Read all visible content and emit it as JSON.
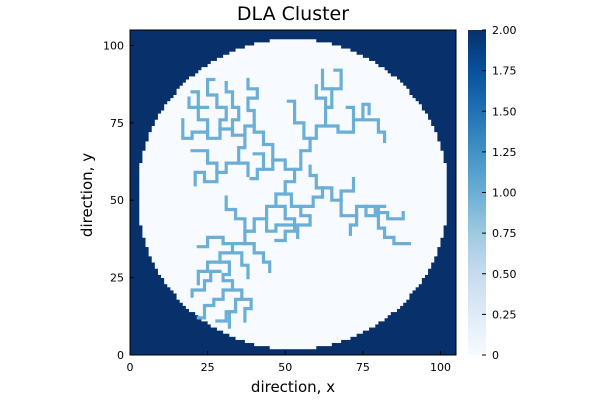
{
  "chart_data": {
    "type": "heatmap",
    "title": "DLA Cluster",
    "xlabel": "direction, x",
    "ylabel": "direction, y",
    "xlim": [
      0,
      105
    ],
    "ylim": [
      0,
      105
    ],
    "xticks": [
      0,
      25,
      50,
      75,
      100
    ],
    "yticks": [
      0,
      25,
      50,
      75,
      100
    ],
    "grid": false,
    "grid_size": [
      105,
      105
    ],
    "values": {
      "outside_circle": 2,
      "empty_disk": 0,
      "cluster": 1
    },
    "disk": {
      "center": [
        52,
        52
      ],
      "radius": 50
    },
    "colorbar": {
      "range": [
        0,
        2
      ],
      "ticks": [
        "0",
        "0.25",
        "0.50",
        "0.75",
        "1.00",
        "1.25",
        "1.50",
        "1.75",
        "2.00"
      ],
      "colormap": "Blues",
      "colors": [
        "#f7fbff",
        "#deebf7",
        "#c6dbef",
        "#9ecae1",
        "#6baed6",
        "#4292c6",
        "#2171b5",
        "#08519c",
        "#08306b"
      ]
    },
    "cluster_segments": [
      [
        [
          50,
          52
        ],
        [
          50,
          56
        ],
        [
          53,
          56
        ],
        [
          53,
          60
        ],
        [
          55,
          60
        ],
        [
          55,
          66
        ],
        [
          58,
          66
        ],
        [
          58,
          70
        ],
        [
          60,
          70
        ],
        [
          60,
          74
        ],
        [
          63,
          74
        ],
        [
          63,
          80
        ],
        [
          65,
          80
        ],
        [
          65,
          86
        ],
        [
          62,
          86
        ],
        [
          62,
          92
        ]
      ],
      [
        [
          58,
          70
        ],
        [
          56,
          70
        ],
        [
          56,
          75
        ],
        [
          53,
          75
        ],
        [
          53,
          82
        ],
        [
          51,
          82
        ]
      ],
      [
        [
          63,
          74
        ],
        [
          67,
          74
        ],
        [
          67,
          72
        ],
        [
          72,
          72
        ],
        [
          72,
          76
        ],
        [
          75,
          76
        ],
        [
          75,
          81
        ],
        [
          77,
          81
        ],
        [
          77,
          78
        ]
      ],
      [
        [
          72,
          76
        ],
        [
          72,
          80
        ],
        [
          70,
          80
        ]
      ],
      [
        [
          75,
          76
        ],
        [
          80,
          76
        ],
        [
          80,
          72
        ],
        [
          82,
          72
        ],
        [
          82,
          69
        ]
      ],
      [
        [
          65,
          86
        ],
        [
          68,
          86
        ],
        [
          68,
          92
        ],
        [
          66,
          92
        ]
      ],
      [
        [
          65,
          80
        ],
        [
          63,
          80
        ],
        [
          63,
          83
        ],
        [
          60,
          83
        ],
        [
          60,
          87
        ]
      ],
      [
        [
          53,
          60
        ],
        [
          50,
          60
        ],
        [
          50,
          63
        ],
        [
          46,
          63
        ],
        [
          46,
          60
        ],
        [
          43,
          60
        ],
        [
          43,
          65
        ],
        [
          40,
          65
        ]
      ],
      [
        [
          43,
          60
        ],
        [
          41,
          60
        ],
        [
          41,
          57
        ],
        [
          39,
          57
        ]
      ],
      [
        [
          46,
          63
        ],
        [
          46,
          68
        ],
        [
          43,
          68
        ],
        [
          43,
          72
        ],
        [
          40,
          72
        ],
        [
          40,
          74
        ],
        [
          37,
          74
        ],
        [
          37,
          71
        ],
        [
          33,
          71
        ],
        [
          33,
          73
        ],
        [
          29,
          73
        ],
        [
          29,
          70
        ],
        [
          25,
          70
        ],
        [
          25,
          72
        ],
        [
          20,
          72
        ],
        [
          20,
          70
        ],
        [
          17,
          70
        ],
        [
          17,
          76
        ]
      ],
      [
        [
          40,
          74
        ],
        [
          40,
          79
        ],
        [
          38,
          79
        ],
        [
          38,
          83
        ],
        [
          41,
          83
        ],
        [
          41,
          86
        ],
        [
          38,
          86
        ],
        [
          38,
          89
        ]
      ],
      [
        [
          37,
          71
        ],
        [
          37,
          67
        ],
        [
          35,
          67
        ],
        [
          35,
          62
        ],
        [
          38,
          62
        ],
        [
          38,
          58
        ]
      ],
      [
        [
          33,
          71
        ],
        [
          33,
          76
        ],
        [
          35,
          76
        ],
        [
          35,
          80
        ],
        [
          33,
          80
        ],
        [
          33,
          85
        ],
        [
          31,
          85
        ],
        [
          31,
          88
        ]
      ],
      [
        [
          29,
          73
        ],
        [
          29,
          76
        ],
        [
          31,
          76
        ],
        [
          31,
          80
        ],
        [
          28,
          80
        ],
        [
          28,
          84
        ],
        [
          25,
          84
        ],
        [
          25,
          89
        ],
        [
          27,
          89
        ]
      ],
      [
        [
          25,
          72
        ],
        [
          25,
          76
        ],
        [
          22,
          76
        ],
        [
          22,
          80
        ],
        [
          19,
          80
        ],
        [
          19,
          83
        ]
      ],
      [
        [
          25,
          80
        ],
        [
          22,
          80
        ],
        [
          22,
          85
        ],
        [
          20,
          85
        ]
      ],
      [
        [
          35,
          62
        ],
        [
          31,
          62
        ],
        [
          31,
          59
        ],
        [
          28,
          59
        ],
        [
          28,
          56
        ],
        [
          24,
          56
        ],
        [
          24,
          59
        ],
        [
          21,
          59
        ],
        [
          21,
          55
        ]
      ],
      [
        [
          28,
          59
        ],
        [
          28,
          62
        ],
        [
          25,
          62
        ],
        [
          25,
          66
        ],
        [
          20,
          66
        ]
      ],
      [
        [
          50,
          52
        ],
        [
          52,
          52
        ],
        [
          52,
          48
        ],
        [
          55,
          48
        ],
        [
          55,
          45
        ],
        [
          58,
          45
        ],
        [
          58,
          42
        ],
        [
          54,
          42
        ],
        [
          54,
          38
        ]
      ],
      [
        [
          55,
          48
        ],
        [
          59,
          48
        ],
        [
          59,
          51
        ],
        [
          62,
          51
        ],
        [
          62,
          54
        ],
        [
          65,
          54
        ],
        [
          65,
          50
        ],
        [
          68,
          50
        ],
        [
          68,
          53
        ],
        [
          72,
          53
        ],
        [
          72,
          57
        ]
      ],
      [
        [
          68,
          50
        ],
        [
          68,
          45
        ],
        [
          73,
          45
        ],
        [
          73,
          48
        ],
        [
          76,
          48
        ],
        [
          76,
          45
        ],
        [
          80,
          45
        ],
        [
          80,
          41
        ],
        [
          82,
          41
        ],
        [
          82,
          38
        ],
        [
          85,
          38
        ],
        [
          85,
          36
        ],
        [
          90,
          36
        ]
      ],
      [
        [
          73,
          45
        ],
        [
          73,
          42
        ],
        [
          71,
          42
        ],
        [
          71,
          39
        ]
      ],
      [
        [
          76,
          48
        ],
        [
          79,
          48
        ],
        [
          79,
          46
        ],
        [
          83,
          46
        ],
        [
          83,
          44
        ],
        [
          88,
          44
        ],
        [
          88,
          46
        ]
      ],
      [
        [
          80,
          45
        ],
        [
          80,
          48
        ],
        [
          82,
          48
        ]
      ],
      [
        [
          62,
          54
        ],
        [
          60,
          54
        ],
        [
          60,
          58
        ],
        [
          58,
          58
        ],
        [
          58,
          61
        ]
      ],
      [
        [
          50,
          52
        ],
        [
          47,
          52
        ],
        [
          47,
          48
        ],
        [
          44,
          48
        ],
        [
          44,
          44
        ],
        [
          40,
          44
        ],
        [
          40,
          40
        ],
        [
          37,
          40
        ],
        [
          37,
          36
        ],
        [
          33,
          36
        ],
        [
          33,
          33
        ],
        [
          29,
          33
        ],
        [
          29,
          30
        ],
        [
          25,
          30
        ],
        [
          25,
          27
        ],
        [
          22,
          27
        ],
        [
          22,
          23
        ]
      ],
      [
        [
          47,
          48
        ],
        [
          50,
          48
        ],
        [
          50,
          44
        ],
        [
          53,
          44
        ],
        [
          53,
          40
        ],
        [
          50,
          40
        ],
        [
          50,
          37
        ],
        [
          47,
          37
        ]
      ],
      [
        [
          44,
          44
        ],
        [
          44,
          40
        ],
        [
          47,
          40
        ],
        [
          47,
          42
        ],
        [
          52,
          42
        ]
      ],
      [
        [
          40,
          40
        ],
        [
          37,
          40
        ],
        [
          37,
          44
        ],
        [
          34,
          44
        ],
        [
          34,
          47
        ],
        [
          31,
          47
        ],
        [
          31,
          51
        ]
      ],
      [
        [
          37,
          36
        ],
        [
          40,
          36
        ],
        [
          40,
          33
        ],
        [
          43,
          33
        ],
        [
          43,
          30
        ],
        [
          45,
          30
        ],
        [
          45,
          27
        ]
      ],
      [
        [
          33,
          36
        ],
        [
          30,
          36
        ],
        [
          30,
          38
        ],
        [
          25,
          38
        ],
        [
          25,
          35
        ],
        [
          22,
          35
        ]
      ],
      [
        [
          33,
          33
        ],
        [
          36,
          33
        ],
        [
          36,
          29
        ],
        [
          38,
          29
        ],
        [
          38,
          25
        ]
      ],
      [
        [
          29,
          30
        ],
        [
          32,
          30
        ],
        [
          32,
          26
        ],
        [
          30,
          26
        ],
        [
          30,
          24
        ],
        [
          33,
          24
        ],
        [
          33,
          21
        ],
        [
          36,
          21
        ],
        [
          36,
          18
        ],
        [
          34,
          18
        ],
        [
          34,
          14
        ],
        [
          31,
          14
        ],
        [
          31,
          11
        ],
        [
          28,
          11
        ]
      ],
      [
        [
          29,
          27
        ],
        [
          26,
          27
        ],
        [
          26,
          24
        ],
        [
          24,
          24
        ],
        [
          24,
          21
        ],
        [
          20,
          21
        ],
        [
          20,
          19
        ]
      ],
      [
        [
          33,
          21
        ],
        [
          30,
          21
        ],
        [
          30,
          18
        ],
        [
          27,
          18
        ],
        [
          27,
          16
        ],
        [
          24,
          16
        ],
        [
          24,
          12
        ],
        [
          22,
          12
        ]
      ],
      [
        [
          36,
          18
        ],
        [
          39,
          18
        ],
        [
          39,
          15
        ],
        [
          37,
          15
        ],
        [
          37,
          11
        ]
      ],
      [
        [
          34,
          14
        ],
        [
          32,
          14
        ],
        [
          32,
          9
        ]
      ]
    ]
  }
}
